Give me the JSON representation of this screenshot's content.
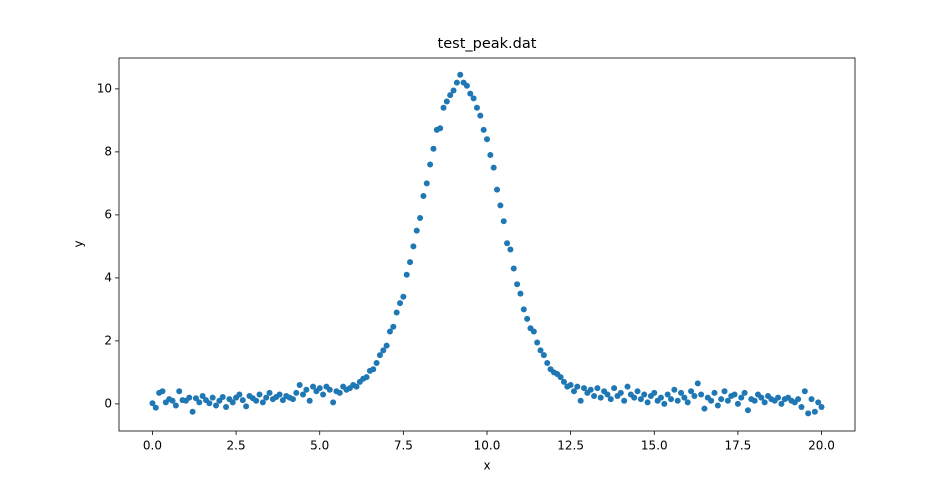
{
  "chart_data": {
    "type": "scatter",
    "title": "test_peak.dat",
    "xlabel": "x",
    "ylabel": "y",
    "color": "#1f77b4",
    "xlim": [
      -1,
      21
    ],
    "ylim": [
      -0.86,
      10.98
    ],
    "xticks": [
      {
        "value": 0,
        "label": "0.0"
      },
      2.5,
      {
        "value": 5,
        "label": "5.0"
      },
      7.5,
      {
        "value": 10,
        "label": "10.0"
      },
      12.5,
      {
        "value": 15,
        "label": "15.0"
      },
      17.5,
      {
        "value": 20,
        "label": "20.0"
      }
    ],
    "yticks": [
      0,
      2,
      4,
      6,
      8,
      10
    ],
    "x": [
      0,
      0.1,
      0.2,
      0.3,
      0.4,
      0.5,
      0.6,
      0.7,
      0.8,
      0.9,
      1,
      1.1,
      1.2,
      1.3,
      1.4,
      1.5,
      1.6,
      1.7,
      1.8,
      1.9,
      2,
      2.1,
      2.2,
      2.3,
      2.4,
      2.5,
      2.6,
      2.7,
      2.8,
      2.9,
      3,
      3.1,
      3.2,
      3.3,
      3.4,
      3.5,
      3.6,
      3.7,
      3.8,
      3.9,
      4,
      4.1,
      4.2,
      4.3,
      4.4,
      4.5,
      4.6,
      4.7,
      4.8,
      4.9,
      5,
      5.1,
      5.2,
      5.3,
      5.4,
      5.5,
      5.6,
      5.7,
      5.8,
      5.9,
      6,
      6.1,
      6.2,
      6.3,
      6.4,
      6.5,
      6.6,
      6.7,
      6.8,
      6.9,
      7,
      7.1,
      7.2,
      7.3,
      7.4,
      7.5,
      7.6,
      7.7,
      7.8,
      7.9,
      8,
      8.1,
      8.2,
      8.3,
      8.4,
      8.5,
      8.6,
      8.7,
      8.8,
      8.9,
      9,
      9.1,
      9.2,
      9.3,
      9.4,
      9.5,
      9.6,
      9.7,
      9.8,
      9.9,
      10,
      10.1,
      10.2,
      10.3,
      10.4,
      10.5,
      10.6,
      10.7,
      10.8,
      10.9,
      11,
      11.1,
      11.2,
      11.3,
      11.4,
      11.5,
      11.6,
      11.7,
      11.8,
      11.9,
      12,
      12.1,
      12.2,
      12.3,
      12.4,
      12.5,
      12.6,
      12.7,
      12.8,
      12.9,
      13,
      13.1,
      13.2,
      13.3,
      13.4,
      13.5,
      13.6,
      13.7,
      13.8,
      13.9,
      14,
      14.1,
      14.2,
      14.3,
      14.4,
      14.5,
      14.6,
      14.7,
      14.8,
      14.9,
      15,
      15.1,
      15.2,
      15.3,
      15.4,
      15.5,
      15.6,
      15.7,
      15.8,
      15.9,
      16,
      16.1,
      16.2,
      16.3,
      16.4,
      16.5,
      16.6,
      16.7,
      16.8,
      16.9,
      17,
      17.1,
      17.2,
      17.3,
      17.4,
      17.5,
      17.6,
      17.7,
      17.8,
      17.9,
      18,
      18.1,
      18.2,
      18.3,
      18.4,
      18.5,
      18.6,
      18.7,
      18.8,
      18.9,
      19,
      19.1,
      19.2,
      19.3,
      19.4,
      19.5,
      19.6,
      19.7,
      19.8,
      19.9,
      20
    ],
    "values": [
      0.02,
      -0.12,
      0.35,
      0.4,
      0.05,
      0.15,
      0.1,
      -0.05,
      0.4,
      0.12,
      0.1,
      0.2,
      -0.25,
      0.18,
      0.05,
      0.25,
      0.12,
      0.02,
      0.2,
      -0.05,
      0.1,
      0.22,
      -0.1,
      0.15,
      0.05,
      0.2,
      0.3,
      0.12,
      -0.08,
      0.25,
      0.18,
      0.1,
      0.3,
      0.05,
      0.2,
      0.35,
      0.15,
      0.22,
      0.3,
      0.12,
      0.25,
      0.2,
      0.15,
      0.35,
      0.6,
      0.3,
      0.45,
      0.1,
      0.55,
      0.4,
      0.5,
      0.3,
      0.55,
      0.45,
      0.05,
      0.4,
      0.35,
      0.55,
      0.45,
      0.5,
      0.6,
      0.55,
      0.7,
      0.8,
      0.85,
      1.05,
      1.1,
      1.3,
      1.55,
      1.7,
      1.85,
      2.3,
      2.45,
      2.9,
      3.2,
      3.4,
      4.1,
      4.5,
      5.0,
      5.5,
      5.9,
      6.6,
      7.0,
      7.6,
      8.1,
      8.7,
      8.75,
      9.4,
      9.6,
      9.8,
      9.95,
      10.2,
      10.45,
      10.2,
      10.1,
      9.85,
      9.7,
      9.4,
      9.15,
      8.7,
      8.4,
      7.9,
      7.5,
      6.8,
      6.3,
      5.8,
      5.1,
      4.9,
      4.3,
      3.8,
      3.5,
      3.0,
      2.7,
      2.4,
      2.3,
      1.95,
      1.7,
      1.55,
      1.3,
      1.1,
      1.0,
      0.95,
      0.85,
      0.7,
      0.55,
      0.6,
      0.4,
      0.55,
      0.1,
      0.5,
      0.35,
      0.45,
      0.25,
      0.5,
      0.2,
      0.4,
      0.3,
      0.15,
      0.5,
      0.25,
      0.35,
      0.1,
      0.55,
      0.3,
      0.2,
      0.4,
      0.15,
      0.3,
      0.05,
      0.25,
      0.35,
      0.1,
      0.2,
      0.0,
      0.3,
      0.15,
      0.45,
      0.1,
      0.35,
      0.2,
      0.05,
      0.4,
      0.25,
      0.65,
      0.3,
      -0.15,
      0.2,
      0.1,
      0.35,
      -0.05,
      0.15,
      0.4,
      0.1,
      0.25,
      0.3,
      0.0,
      0.2,
      0.35,
      -0.2,
      0.15,
      0.1,
      0.3,
      0.2,
      0.05,
      0.25,
      0.15,
      0.1,
      0.2,
      0.0,
      0.15,
      0.2,
      0.1,
      0.05,
      0.15,
      -0.1,
      0.4,
      -0.3,
      0.15,
      -0.25,
      0.05,
      -0.1
    ]
  }
}
